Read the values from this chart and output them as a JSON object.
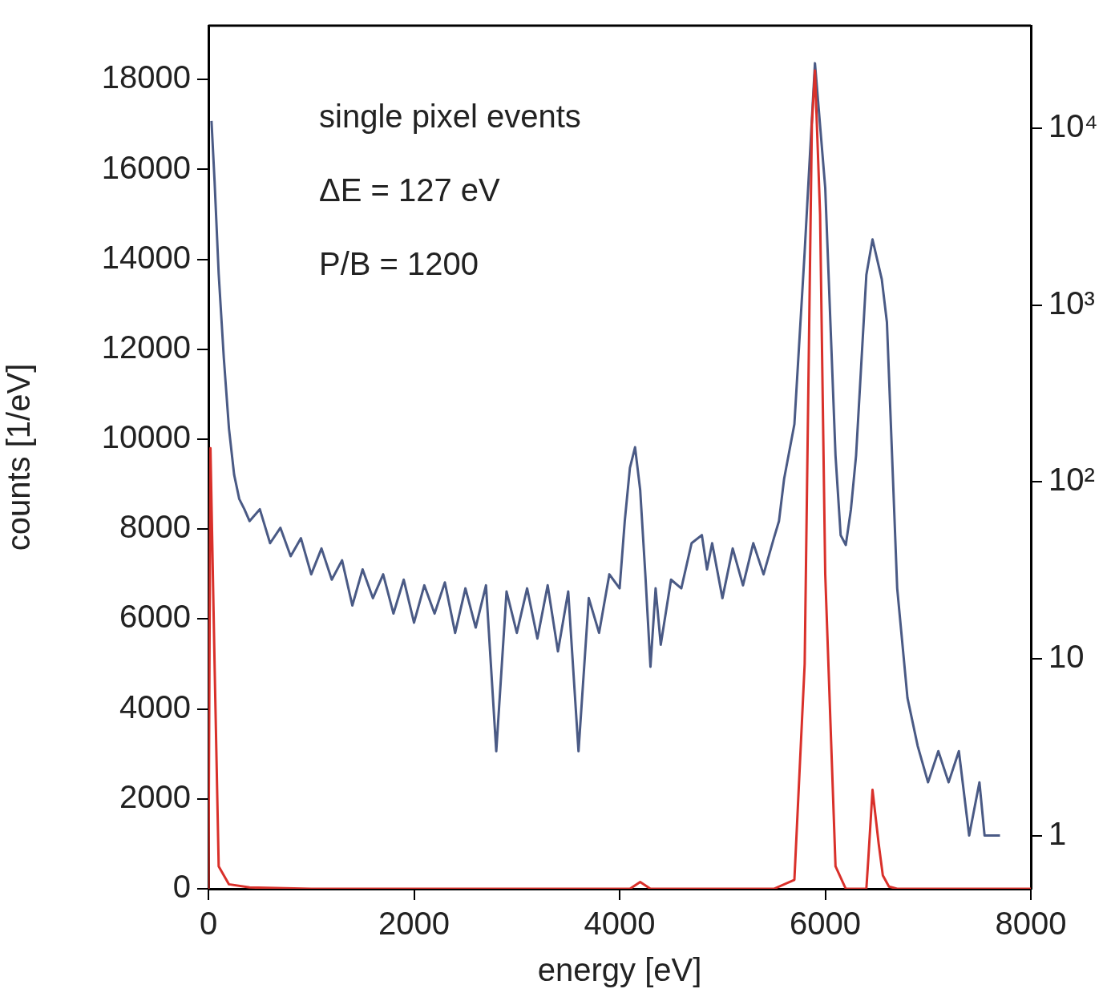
{
  "chart_data": {
    "type": "line",
    "xlabel": "energy [eV]",
    "ylabel": "counts [1/eV]",
    "annotations": [
      "single pixel events",
      "ΔE = 127 eV",
      "P/B = 1200"
    ],
    "xlim": [
      0,
      8000
    ],
    "xticks": [
      0,
      2000,
      4000,
      6000,
      8000
    ],
    "ylim": [
      0,
      19200
    ],
    "yticks": [
      0,
      2000,
      4000,
      6000,
      8000,
      10000,
      12000,
      14000,
      16000,
      18000
    ],
    "y2lim": [
      0.5,
      38000
    ],
    "y2ticks": [
      1,
      10,
      {
        "value": 100,
        "label": "10²"
      },
      {
        "value": 1000,
        "label": "10³"
      },
      {
        "value": 10000,
        "label": "10⁴"
      }
    ],
    "log": "y2",
    "grid": false,
    "legend": false,
    "marker": "none",
    "line_style": "solid",
    "series": [
      {
        "axis": "y2",
        "color": "#4a5a85",
        "x": [
          30,
          60,
          100,
          150,
          200,
          250,
          300,
          350,
          400,
          500,
          600,
          700,
          800,
          900,
          1000,
          1100,
          1200,
          1300,
          1400,
          1500,
          1600,
          1700,
          1800,
          1900,
          2000,
          2100,
          2200,
          2300,
          2400,
          2500,
          2600,
          2700,
          2800,
          2900,
          3000,
          3100,
          3200,
          3300,
          3400,
          3500,
          3600,
          3700,
          3800,
          3900,
          4000,
          4050,
          4100,
          4150,
          4200,
          4250,
          4300,
          4350,
          4400,
          4500,
          4600,
          4700,
          4800,
          4850,
          4900,
          5000,
          5100,
          5200,
          5300,
          5400,
          5500,
          5550,
          5600,
          5700,
          5800,
          5900,
          6000,
          6100,
          6150,
          6200,
          6250,
          6300,
          6400,
          6460,
          6550,
          6600,
          6700,
          6800,
          6900,
          7000,
          7100,
          7200,
          7300,
          7400,
          7500,
          7550,
          7700
        ],
        "values": [
          11000,
          5000,
          1500,
          500,
          200,
          110,
          80,
          70,
          60,
          70,
          45,
          55,
          38,
          48,
          30,
          42,
          28,
          36,
          20,
          32,
          22,
          30,
          18,
          28,
          16,
          26,
          18,
          27,
          14,
          25,
          15,
          26,
          3,
          24,
          14,
          25,
          13,
          26,
          11,
          24,
          3,
          22,
          14,
          30,
          25,
          60,
          120,
          157,
          90,
          30,
          9,
          25,
          12,
          28,
          25,
          45,
          50,
          32,
          45,
          22,
          42,
          26,
          45,
          30,
          48,
          60,
          104,
          212,
          2000,
          23300,
          4600,
          141,
          50,
          44,
          70,
          141,
          1480,
          2350,
          1400,
          800,
          25,
          6,
          3.2,
          2,
          3,
          2,
          3,
          1,
          2,
          1,
          1
        ]
      },
      {
        "color": "#d9302a",
        "x": [
          0,
          20,
          60,
          100,
          200,
          400,
          1000,
          4100,
          4200,
          4300,
          5500,
          5700,
          5800,
          5870,
          5900,
          5950,
          6000,
          6100,
          6200,
          6400,
          6420,
          6460,
          6520,
          6560,
          6620,
          6700,
          8000
        ],
        "values": [
          0,
          9800,
          5000,
          500,
          100,
          30,
          0,
          0,
          150,
          0,
          0,
          200,
          5000,
          17000,
          18200,
          15000,
          7000,
          500,
          0,
          0,
          700,
          2200,
          1000,
          300,
          50,
          0,
          0
        ]
      }
    ]
  }
}
